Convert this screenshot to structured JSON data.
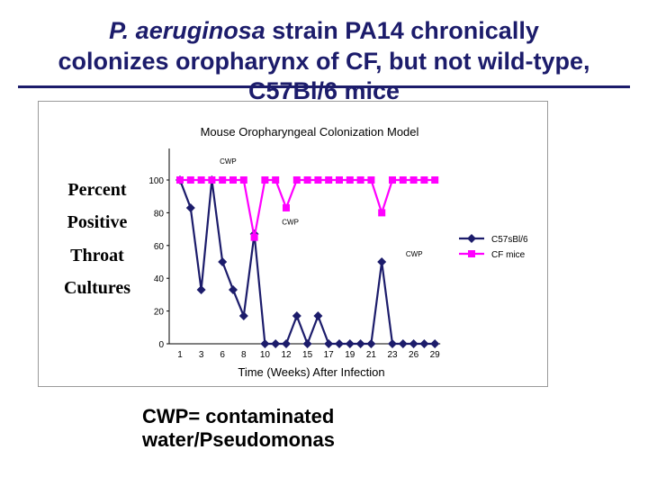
{
  "slide": {
    "title_italic": "P. aeruginosa",
    "title_line1_rest": " strain PA14 chronically",
    "title_line2": "colonizes oropharynx of CF, but not wild-type,",
    "title_line3": "C57Bl/6 mice",
    "y_axis_words": [
      "Percent",
      "Positive",
      "Throat",
      "Cultures"
    ],
    "footnote_line1": "CWP= contaminated",
    "footnote_line2": "water/Pseudomonas"
  },
  "chart_data": {
    "type": "line",
    "title": "Mouse Oropharyngeal Colonization Model",
    "xlabel": "Time (Weeks) After Infection",
    "ylabel": "Percent Positive Throat Cultures",
    "ylim": [
      0,
      100
    ],
    "y_ticks": [
      0,
      20,
      40,
      60,
      80,
      100
    ],
    "x_tick_labels": [
      "1",
      "3",
      "6",
      "8",
      "10",
      "12",
      "15",
      "17",
      "19",
      "21",
      "23",
      "26",
      "29"
    ],
    "x_tick_every": 2,
    "point_count": 25,
    "legend_position": "right",
    "series": [
      {
        "name": "C57sBl/6",
        "color": "#1c1c6b",
        "marker": "diamond",
        "values": [
          100,
          83,
          33,
          100,
          50,
          33,
          17,
          67,
          0,
          0,
          0,
          17,
          0,
          17,
          0,
          0,
          0,
          0,
          0,
          50,
          0,
          0,
          0,
          0,
          0
        ]
      },
      {
        "name": "CF mice",
        "color": "#ff00ff",
        "marker": "square",
        "values": [
          100,
          100,
          100,
          100,
          100,
          100,
          100,
          65,
          100,
          100,
          83,
          100,
          100,
          100,
          100,
          100,
          100,
          100,
          100,
          80,
          100,
          100,
          100,
          100,
          100
        ]
      }
    ],
    "annotations": [
      {
        "text": "CWP",
        "index": 3,
        "y": 100
      },
      {
        "text": "CWP",
        "index": 7,
        "y": 65
      },
      {
        "text": "CWP",
        "index": 19,
        "y": 50
      }
    ]
  }
}
